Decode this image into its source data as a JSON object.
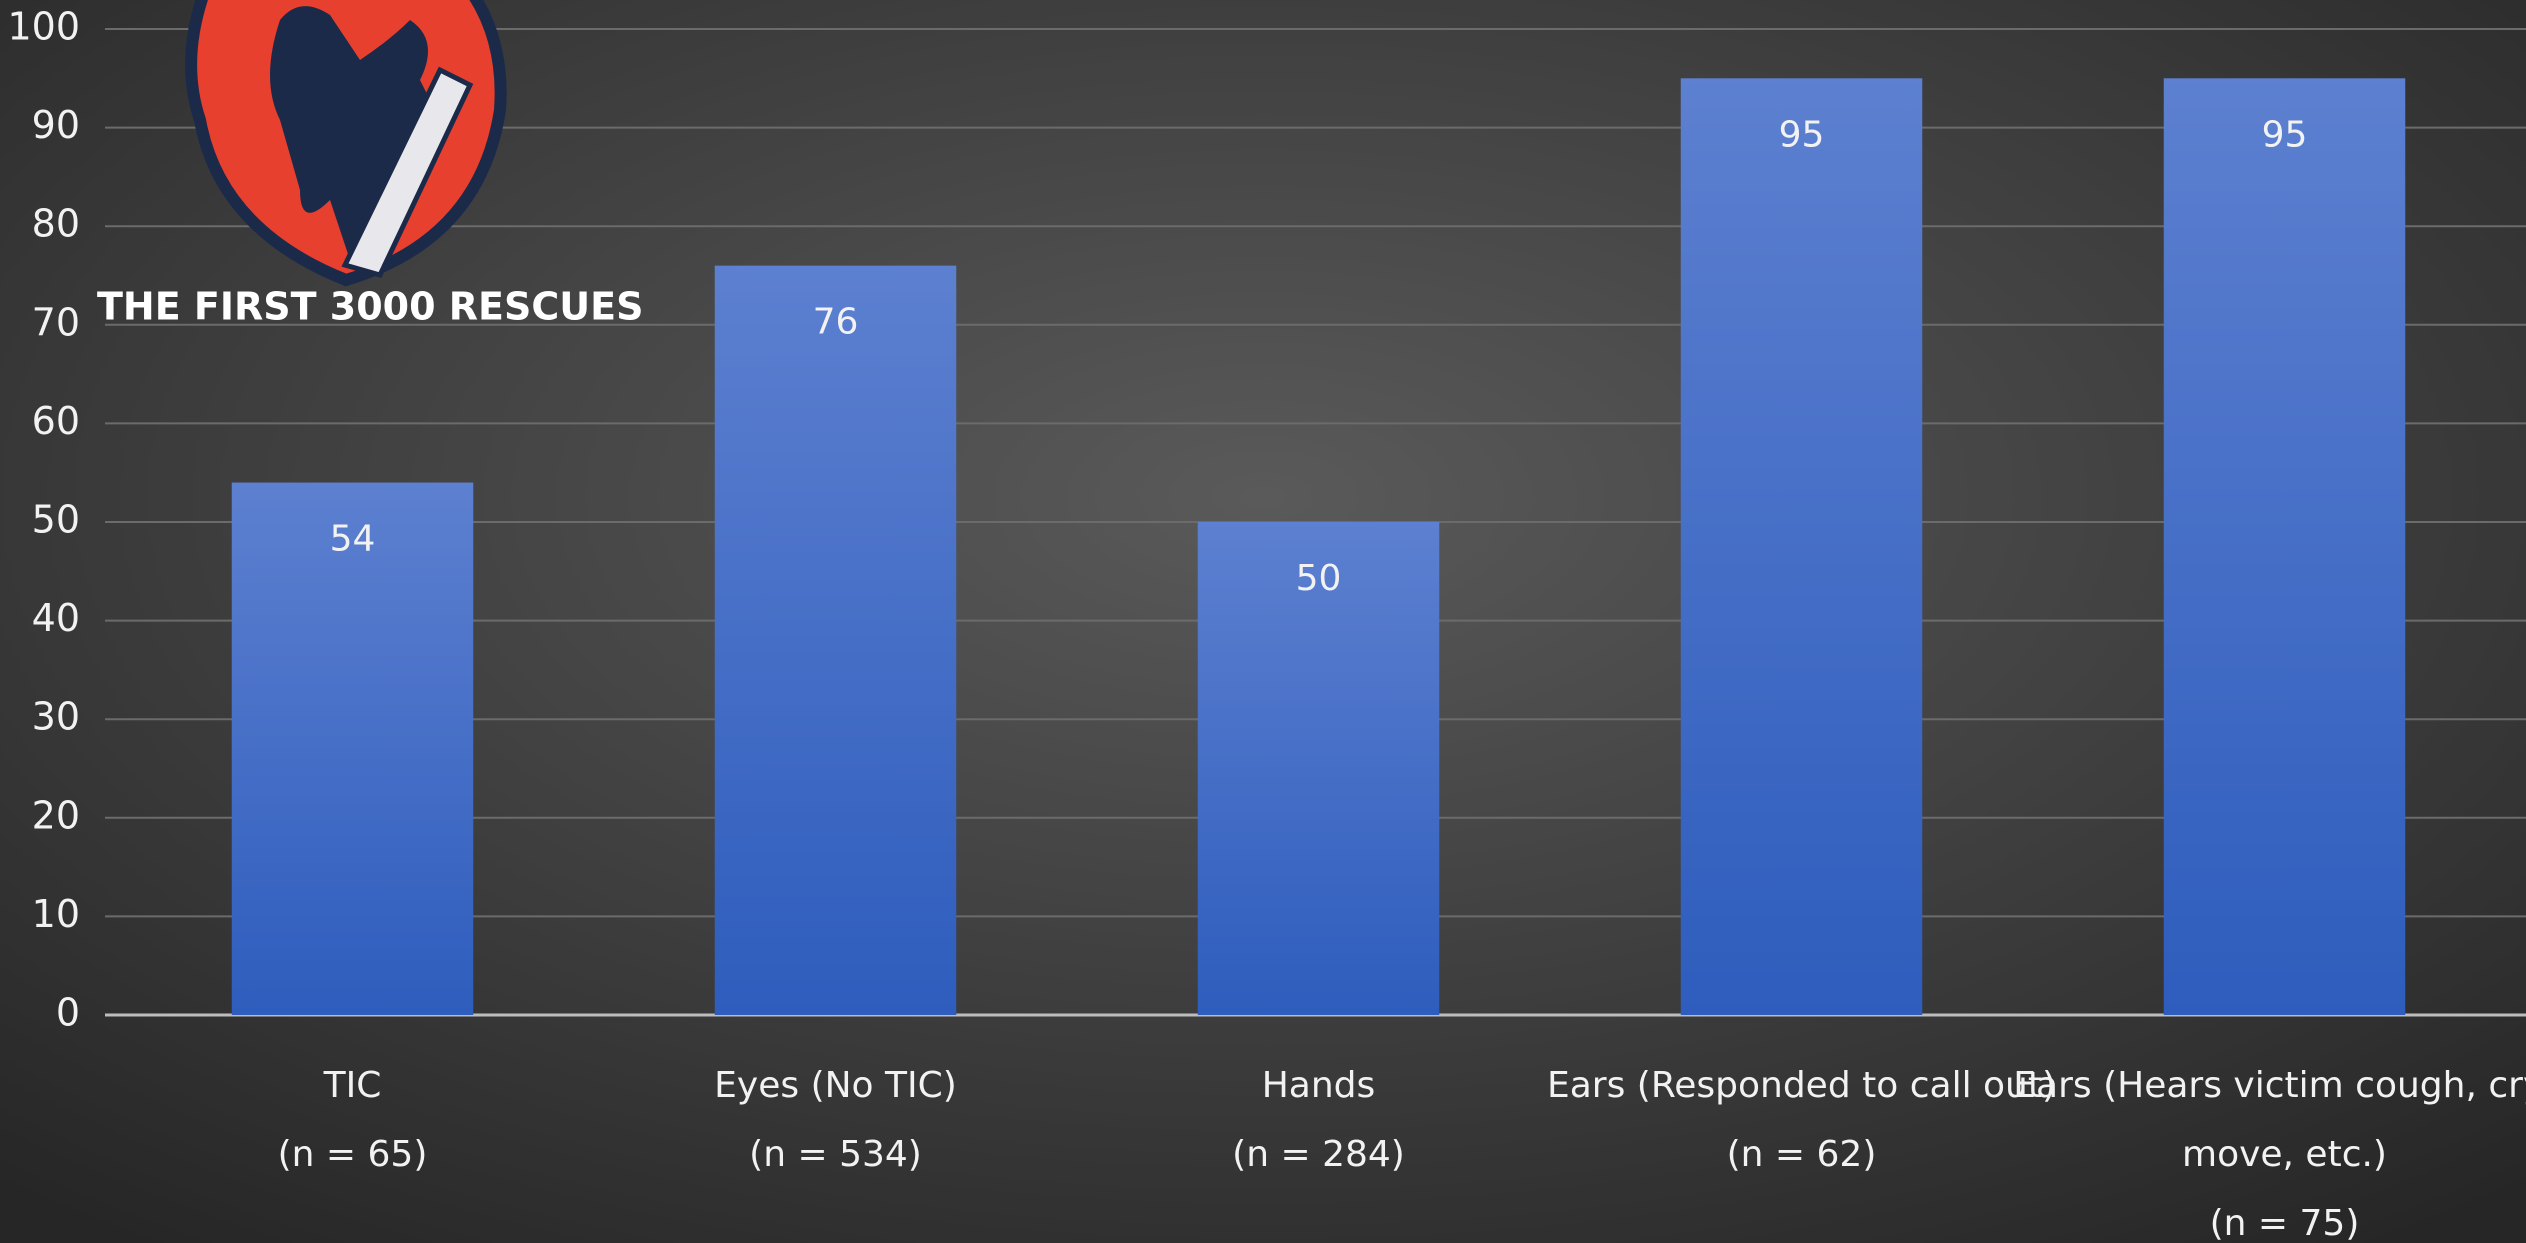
{
  "chart_data": {
    "type": "bar",
    "logo_text": "THE FIRST 3000 RESCUES",
    "categories": [
      [
        "TIC",
        "(n = 65)"
      ],
      [
        "Eyes (No TIC)",
        "(n = 534)"
      ],
      [
        "Hands",
        "(n = 284)"
      ],
      [
        "Ears (Responded to call out)",
        "(n = 62)"
      ],
      [
        "Ears (Hears victim cough, cry,",
        "move, etc.)",
        "(n = 75)"
      ]
    ],
    "values": [
      54,
      76,
      50,
      95,
      95
    ],
    "color": "#3d6ac8",
    "ylim": [
      0,
      100
    ],
    "yticks": [
      0,
      10,
      20,
      30,
      40,
      50,
      60,
      70,
      80,
      90,
      100
    ],
    "grid": true
  }
}
